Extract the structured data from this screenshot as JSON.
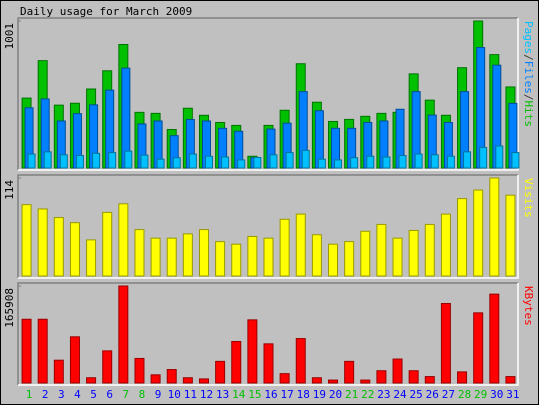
{
  "chart_data": [
    {
      "type": "bar",
      "title": "Daily usage for March 2009",
      "legend_separator": "/",
      "ylim": [
        0,
        1001
      ],
      "yticks": [
        1001
      ],
      "series": [
        {
          "name": "Pages",
          "color": "#00c0ff",
          "values": [
            95,
            110,
            90,
            85,
            100,
            105,
            115,
            88,
            60,
            70,
            95,
            80,
            75,
            55,
            72,
            90,
            105,
            120,
            60,
            55,
            70,
            80,
            75,
            85,
            95,
            90,
            80,
            110,
            140,
            150,
            105
          ]
        },
        {
          "name": "Files",
          "color": "#0080ff",
          "values": [
            410,
            470,
            320,
            370,
            430,
            530,
            680,
            300,
            320,
            220,
            330,
            320,
            270,
            250,
            70,
            265,
            305,
            520,
            390,
            270,
            270,
            310,
            320,
            400,
            520,
            360,
            310,
            520,
            820,
            700,
            440
          ]
        },
        {
          "name": "Hits",
          "color": "#00c000",
          "values": [
            476,
            731,
            428,
            441,
            538,
            662,
            841,
            379,
            372,
            262,
            407,
            359,
            310,
            290,
            80,
            290,
            393,
            710,
            448,
            317,
            331,
            352,
            372,
            379,
            641,
            462,
            359,
            683,
            1001,
            772,
            552
          ]
        }
      ]
    },
    {
      "type": "bar",
      "ylim": [
        0,
        114
      ],
      "yticks": [
        114
      ],
      "series": [
        {
          "name": "Visits",
          "color": "#ffff00",
          "values": [
            83,
            78,
            68,
            62,
            42,
            74,
            84,
            54,
            44,
            44,
            49,
            54,
            40,
            37,
            46,
            44,
            66,
            72,
            48,
            37,
            40,
            52,
            60,
            44,
            53,
            60,
            72,
            90,
            100,
            114,
            94
          ]
        }
      ]
    },
    {
      "type": "bar",
      "ylim": [
        0,
        165908
      ],
      "yticks": [
        165908
      ],
      "categories": [
        "1",
        "2",
        "3",
        "4",
        "5",
        "6",
        "7",
        "8",
        "9",
        "10",
        "11",
        "12",
        "13",
        "14",
        "15",
        "16",
        "17",
        "18",
        "19",
        "20",
        "21",
        "22",
        "23",
        "24",
        "25",
        "26",
        "27",
        "28",
        "29",
        "30",
        "31"
      ],
      "label_colors": [
        "#00c000",
        "#0000ff",
        "#0000ff",
        "#0000ff",
        "#0000ff",
        "#0000ff",
        "#00c000",
        "#00c000",
        "#0000ff",
        "#0000ff",
        "#0000ff",
        "#0000ff",
        "#0000ff",
        "#00c000",
        "#00c000",
        "#0000ff",
        "#0000ff",
        "#0000ff",
        "#0000ff",
        "#0000ff",
        "#00c000",
        "#00c000",
        "#0000ff",
        "#0000ff",
        "#0000ff",
        "#0000ff",
        "#0000ff",
        "#00c000",
        "#00c000",
        "#0000ff",
        "#0000ff"
      ],
      "series": [
        {
          "name": "KBytes",
          "color": "#ff0000",
          "values": [
            109000,
            109000,
            39000,
            79000,
            9000,
            55000,
            165908,
            42000,
            14000,
            23000,
            9000,
            7000,
            37000,
            71000,
            108000,
            67000,
            16000,
            76000,
            9000,
            5000,
            37000,
            5000,
            21000,
            41000,
            21000,
            11000,
            136000,
            19000,
            120000,
            152000,
            11000
          ]
        }
      ]
    }
  ]
}
